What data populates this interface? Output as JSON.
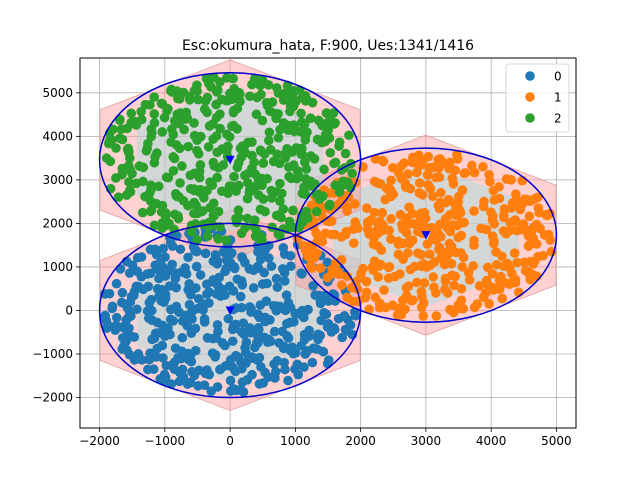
{
  "chart_data": {
    "type": "scatter",
    "title": "Esc:okumura_hata, F:900, Ues:1341/1416",
    "xlabel": "",
    "ylabel": "",
    "xlim": [
      -2300,
      5300
    ],
    "ylim": [
      -2700,
      5800
    ],
    "xticks": [
      -2000,
      -1000,
      0,
      1000,
      2000,
      3000,
      4000,
      5000
    ],
    "yticks": [
      -2000,
      -1000,
      0,
      1000,
      2000,
      3000,
      4000,
      5000
    ],
    "xtick_labels": [
      "−2000",
      "−1000",
      "0",
      "1000",
      "2000",
      "3000",
      "4000",
      "5000"
    ],
    "ytick_labels": [
      "−2000",
      "−1000",
      "0",
      "1000",
      "2000",
      "3000",
      "4000",
      "5000"
    ],
    "grid": true,
    "legend": "top-right",
    "series": [
      {
        "name": "0",
        "color": "#1f77b4",
        "bs": [
          0,
          0
        ],
        "radius": 2000,
        "count": 460,
        "seed": 11
      },
      {
        "name": "1",
        "color": "#ff7f0e",
        "bs": [
          3000,
          1730
        ],
        "radius": 2000,
        "count": 440,
        "seed": 23
      },
      {
        "name": "2",
        "color": "#2ca02c",
        "bs": [
          0,
          3460
        ],
        "radius": 2000,
        "count": 441,
        "seed": 37
      }
    ],
    "base_stations": [
      [
        0,
        0
      ],
      [
        3000,
        1730
      ],
      [
        0,
        3460
      ]
    ],
    "base_station_color": "#0000ff",
    "coverage_circle_color": "#0000cc",
    "hexagon_fill": "#ff9999",
    "inner_fill": "#aadddd"
  }
}
